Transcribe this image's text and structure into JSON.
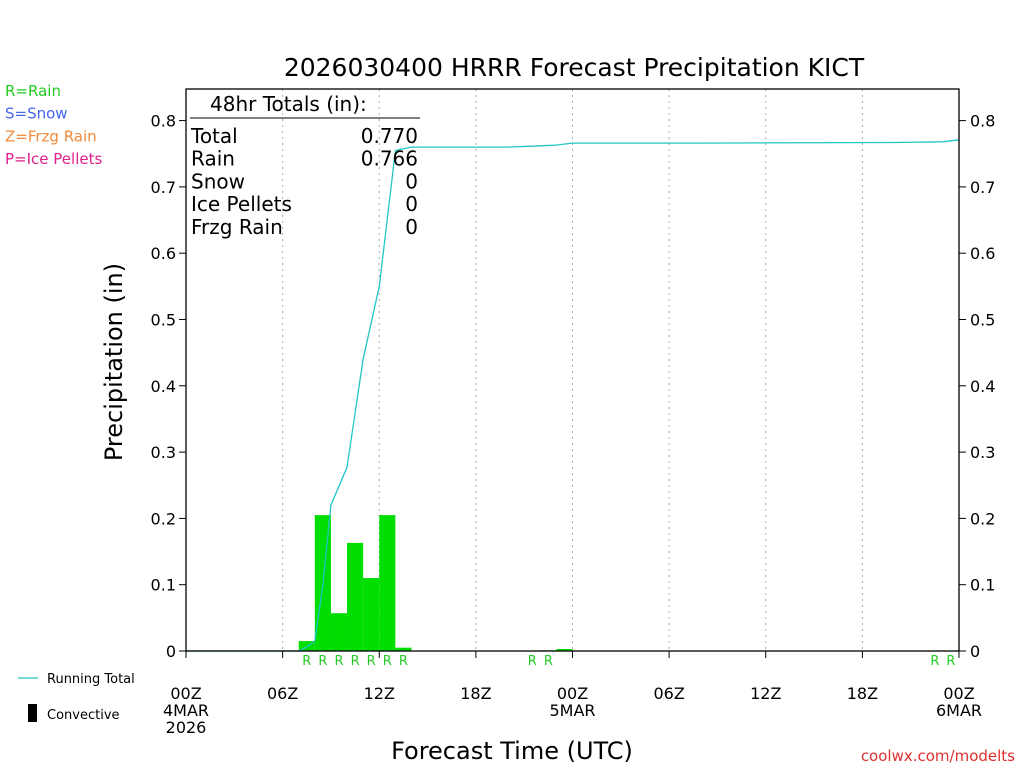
{
  "chart_data": {
    "type": "bar",
    "title": "2026030400 HRRR Forecast Precipitation KICT",
    "xlabel": "Forecast Time (UTC)",
    "ylabel": "Precipitation (in)",
    "ylim": [
      0,
      0.85
    ],
    "xlim_hours": [
      0,
      48
    ],
    "yticks": [
      "0",
      "0.1",
      "0.2",
      "0.3",
      "0.4",
      "0.5",
      "0.6",
      "0.7",
      "0.8"
    ],
    "yticks_right": [
      "0",
      "0.1",
      "0.2",
      "0.3",
      "0.4",
      "0.5",
      "0.6",
      "0.7",
      "0.8"
    ],
    "xticks": [
      {
        "hour": 0,
        "lines": [
          "00Z",
          "4MAR",
          "2026"
        ]
      },
      {
        "hour": 6,
        "lines": [
          "06Z"
        ]
      },
      {
        "hour": 12,
        "lines": [
          "12Z"
        ]
      },
      {
        "hour": 18,
        "lines": [
          "18Z"
        ]
      },
      {
        "hour": 24,
        "lines": [
          "00Z",
          "5MAR"
        ]
      },
      {
        "hour": 30,
        "lines": [
          "06Z"
        ]
      },
      {
        "hour": 36,
        "lines": [
          "12Z"
        ]
      },
      {
        "hour": 42,
        "lines": [
          "18Z"
        ]
      },
      {
        "hour": 48,
        "lines": [
          "00Z",
          "6MAR"
        ]
      }
    ],
    "legend_types": [
      {
        "label": "R=Rain",
        "color": "#22cc22"
      },
      {
        "label": "S=Snow",
        "color": "#4466ee"
      },
      {
        "label": "Z=Frzg Rain",
        "color": "#f08a3a"
      },
      {
        "label": "P=Ice Pellets",
        "color": "#e0208a"
      }
    ],
    "legend_lines": {
      "running_total_label": "Running Total",
      "running_total_color": "#22c5c5",
      "convective_label": "Convective"
    },
    "totals_box": {
      "heading": "48hr Totals (in):",
      "rows": [
        {
          "label": "Total",
          "value": "0.770"
        },
        {
          "label": "Rain",
          "value": "0.766"
        },
        {
          "label": "Snow",
          "value": "0"
        },
        {
          "label": "Ice Pellets",
          "value": "0"
        },
        {
          "label": "Frzg Rain",
          "value": "0"
        }
      ]
    },
    "series": [
      {
        "name": "Hourly Precipitation",
        "color": "#00dd00",
        "bars": [
          {
            "hour": 8,
            "value": 0.015
          },
          {
            "hour": 9,
            "value": 0.205
          },
          {
            "hour": 10,
            "value": 0.057
          },
          {
            "hour": 11,
            "value": 0.163
          },
          {
            "hour": 12,
            "value": 0.11
          },
          {
            "hour": 13,
            "value": 0.205
          },
          {
            "hour": 14,
            "value": 0.005
          },
          {
            "hour": 23,
            "value": 0.001
          },
          {
            "hour": 24,
            "value": 0.003
          }
        ]
      },
      {
        "name": "Running Total",
        "color": "#22c5c5",
        "points": [
          [
            0,
            0
          ],
          [
            7,
            0
          ],
          [
            7.5,
            0.006
          ],
          [
            8,
            0.015
          ],
          [
            8.5,
            0.1
          ],
          [
            9,
            0.22
          ],
          [
            10,
            0.277
          ],
          [
            11,
            0.44
          ],
          [
            12,
            0.55
          ],
          [
            13,
            0.755
          ],
          [
            14,
            0.76
          ],
          [
            20,
            0.76
          ],
          [
            22,
            0.762
          ],
          [
            23,
            0.763
          ],
          [
            24,
            0.766
          ],
          [
            32,
            0.766
          ],
          [
            44,
            0.767
          ],
          [
            47,
            0.768
          ],
          [
            48,
            0.771
          ]
        ]
      }
    ],
    "type_markers": [
      {
        "hour": 8,
        "label": "R"
      },
      {
        "hour": 9,
        "label": "R"
      },
      {
        "hour": 10,
        "label": "R"
      },
      {
        "hour": 11,
        "label": "R"
      },
      {
        "hour": 12,
        "label": "R"
      },
      {
        "hour": 13,
        "label": "R"
      },
      {
        "hour": 14,
        "label": "R"
      },
      {
        "hour": 22,
        "label": "R"
      },
      {
        "hour": 23,
        "label": "R"
      },
      {
        "hour": 47,
        "label": "R"
      },
      {
        "hour": 48,
        "label": "R"
      }
    ],
    "credit": "coolwx.com/modelts"
  }
}
